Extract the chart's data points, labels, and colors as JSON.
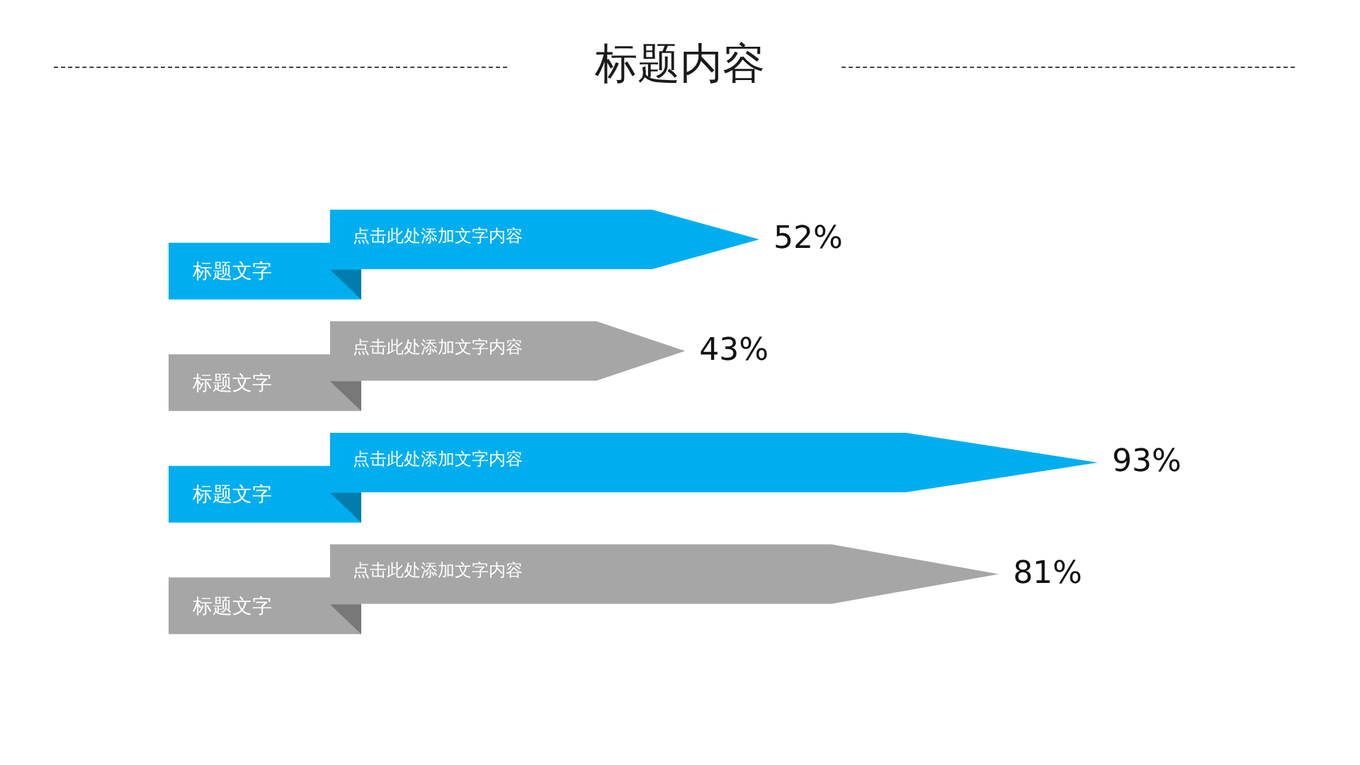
{
  "chart_data": {
    "type": "bar",
    "orientation": "horizontal",
    "title": "标题内容",
    "categories": [
      "标题文字",
      "标题文字",
      "标题文字",
      "标题文字"
    ],
    "values": [
      52,
      43,
      93,
      81
    ],
    "colors": [
      "#00aeef",
      "#a6a6a6",
      "#00aeef",
      "#a6a6a6"
    ],
    "value_labels": [
      "52%",
      "43%",
      "93%",
      "81%"
    ],
    "annotations": [
      "点击此处添加文字内容",
      "点击此处添加文字内容",
      "点击此处添加文字内容",
      "点击此处添加文字内容"
    ]
  }
}
